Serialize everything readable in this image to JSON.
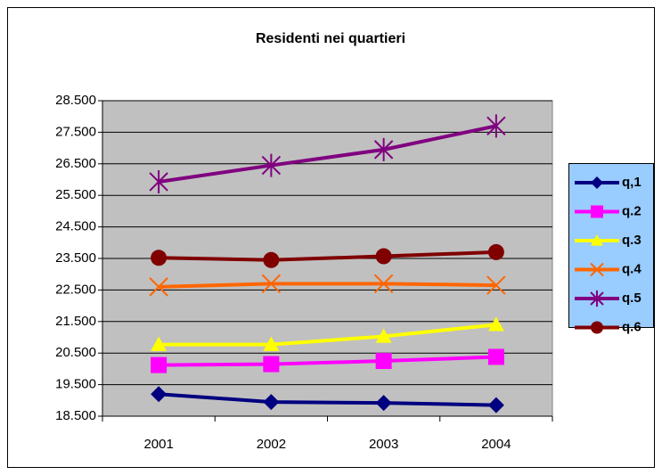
{
  "chart_data": {
    "type": "line",
    "title": "Residenti nei quartieri",
    "categories": [
      "2001",
      "2002",
      "2003",
      "2004"
    ],
    "series": [
      {
        "name": "q,1",
        "color": "#000080",
        "marker": "diamond",
        "values": [
          19200,
          18950,
          18920,
          18850
        ]
      },
      {
        "name": "q.2",
        "color": "#ff00ff",
        "marker": "square",
        "values": [
          20120,
          20150,
          20250,
          20380
        ]
      },
      {
        "name": "q.3",
        "color": "#ffff00",
        "marker": "triangle",
        "values": [
          20770,
          20770,
          21030,
          21400
        ]
      },
      {
        "name": "q.4",
        "color": "#ff6600",
        "marker": "x",
        "values": [
          22600,
          22700,
          22700,
          22650
        ]
      },
      {
        "name": "q.5",
        "color": "#800080",
        "marker": "star",
        "values": [
          25930,
          26450,
          26950,
          27700
        ]
      },
      {
        "name": "q.6",
        "color": "#800000",
        "marker": "circle",
        "values": [
          23520,
          23450,
          23570,
          23700
        ]
      }
    ],
    "ylim": [
      18500,
      28500
    ],
    "yticks": [
      {
        "value": 18500,
        "label": "18.500"
      },
      {
        "value": 19500,
        "label": "19.500"
      },
      {
        "value": 20500,
        "label": "20.500"
      },
      {
        "value": 21500,
        "label": "21.500"
      },
      {
        "value": 22500,
        "label": "22.500"
      },
      {
        "value": 23500,
        "label": "23.500"
      },
      {
        "value": 24500,
        "label": "24.500"
      },
      {
        "value": 25500,
        "label": "25.500"
      },
      {
        "value": 26500,
        "label": "26.500"
      },
      {
        "value": 27500,
        "label": "27.500"
      },
      {
        "value": 28500,
        "label": "28.500"
      }
    ],
    "grid": true,
    "legend": "right"
  }
}
